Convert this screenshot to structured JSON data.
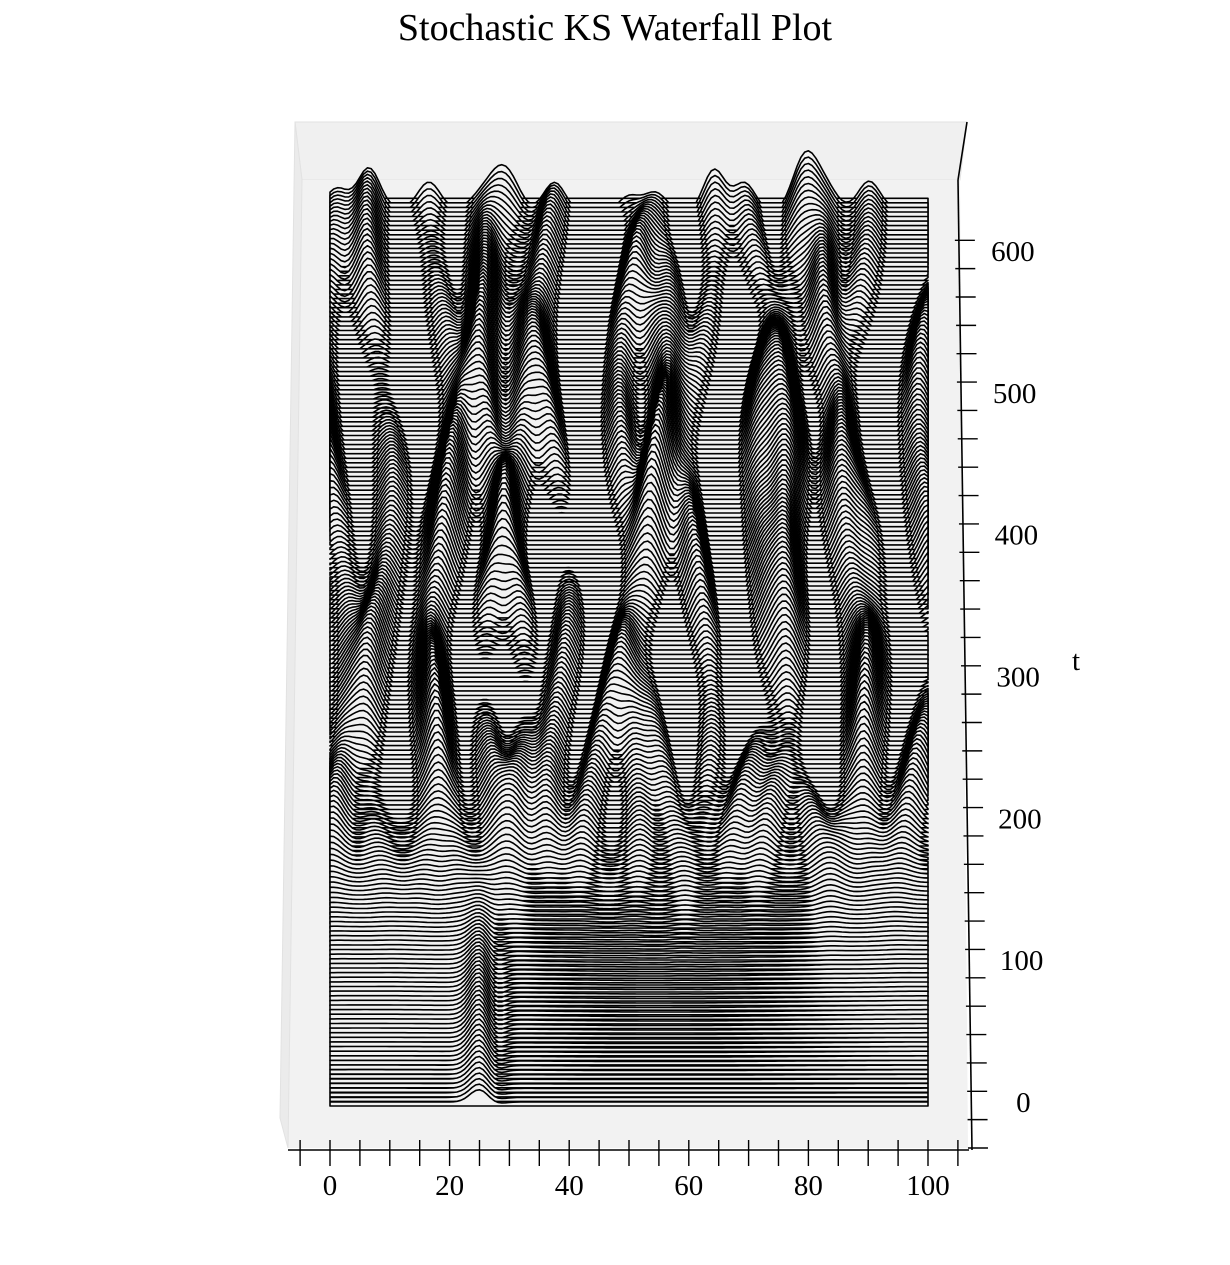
{
  "chart_data": {
    "type": "waterfall",
    "title": "Stochastic KS Waterfall Plot",
    "xlabel": "",
    "ylabel": "t",
    "x_range": [
      0,
      100
    ],
    "t_range": [
      0,
      640
    ],
    "x_ticks": [
      0,
      20,
      40,
      60,
      80,
      100
    ],
    "t_ticks": [
      0,
      100,
      200,
      300,
      400,
      500,
      600
    ],
    "grid": false,
    "line_color": "#000000",
    "pane_color": "#f2f2f2",
    "background_color": "#ffffff",
    "series_count": 200,
    "description_of_series": "Each horizontal trace is the solution u(x) of the stochastic Kuramoto–Sivashinsky equation at one time t, offset vertically by t. Flat near t = 0, a bump near x ≈ 25, then chaotic cellular peaks (~16 cells across x) from t ≈ 170 to t = 640."
  }
}
